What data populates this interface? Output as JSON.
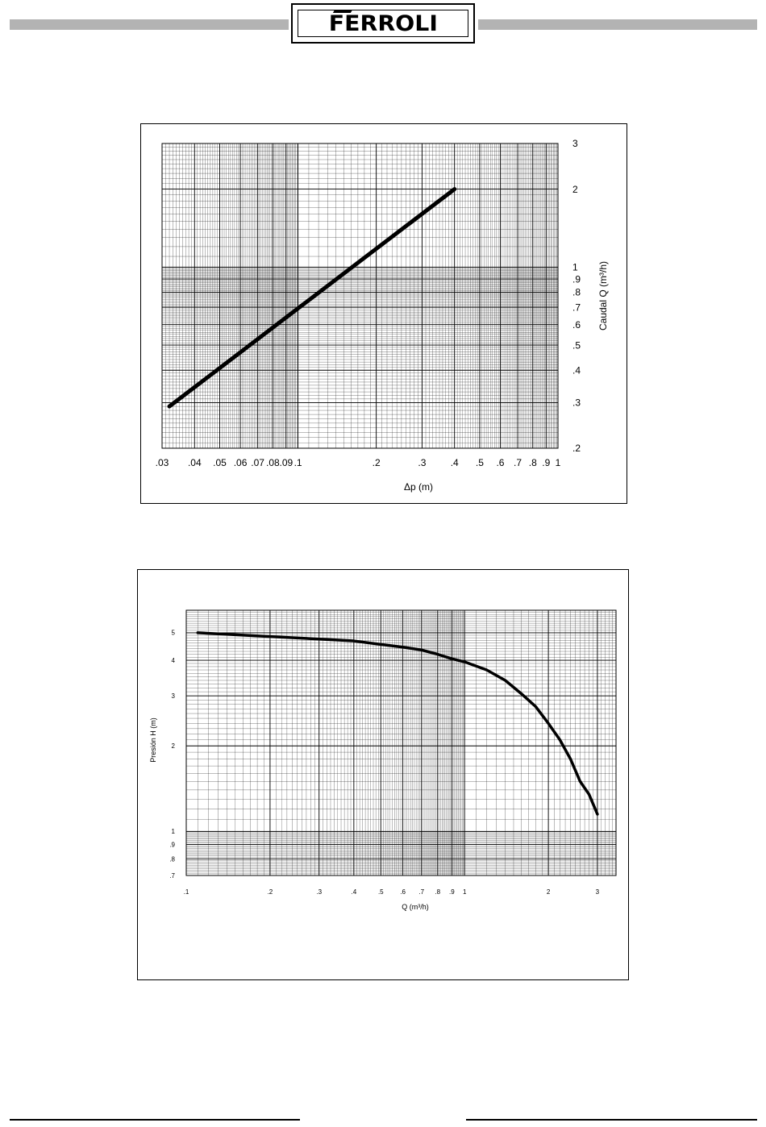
{
  "header": {
    "logo_text": "FERROLI"
  },
  "chart_data": [
    {
      "type": "line",
      "xscale": "log",
      "yscale": "log",
      "xlabel": "Δp (m)",
      "ylabel": "Caudal  Q (m³/h)",
      "xlim": [
        0.03,
        1
      ],
      "ylim": [
        0.2,
        3
      ],
      "xticks": [
        ".03",
        ".04",
        ".05",
        ".06",
        ".07",
        ".08",
        ".09",
        ".1",
        ".2",
        ".3",
        ".4",
        ".5",
        ".6",
        ".7",
        ".8",
        ".9",
        "1"
      ],
      "yticks": [
        ".2",
        ".3",
        ".4",
        ".5",
        ".6",
        ".7",
        ".8",
        ".9",
        "1",
        "2",
        "3"
      ],
      "grid": true,
      "series": [
        {
          "x": [
            0.032,
            0.4
          ],
          "y": [
            0.29,
            2.0
          ]
        }
      ]
    },
    {
      "type": "line",
      "xscale": "log",
      "yscale": "log",
      "xlabel": "Q (m³/h)",
      "ylabel": "Presión  H (m)",
      "xlim": [
        0.1,
        3.5
      ],
      "ylim": [
        0.7,
        6
      ],
      "xticks": [
        ".1",
        ".2",
        ".3",
        ".4",
        ".5",
        ".6",
        ".7",
        ".8",
        ".9",
        "1",
        "2",
        "3"
      ],
      "yticks": [
        ".7",
        ".8",
        ".9",
        "1",
        "2",
        "3",
        "4",
        "5"
      ],
      "grid": true,
      "series": [
        {
          "x": [
            0.11,
            0.2,
            0.3,
            0.4,
            0.5,
            0.6,
            0.7,
            0.8,
            0.9,
            1.0,
            1.2,
            1.4,
            1.6,
            1.8,
            2.0,
            2.2,
            2.4,
            2.6,
            2.8,
            3.0
          ],
          "y": [
            5.0,
            4.85,
            4.75,
            4.68,
            4.55,
            4.45,
            4.35,
            4.2,
            4.05,
            3.95,
            3.7,
            3.4,
            3.05,
            2.75,
            2.4,
            2.1,
            1.8,
            1.5,
            1.35,
            1.15
          ]
        }
      ]
    }
  ]
}
